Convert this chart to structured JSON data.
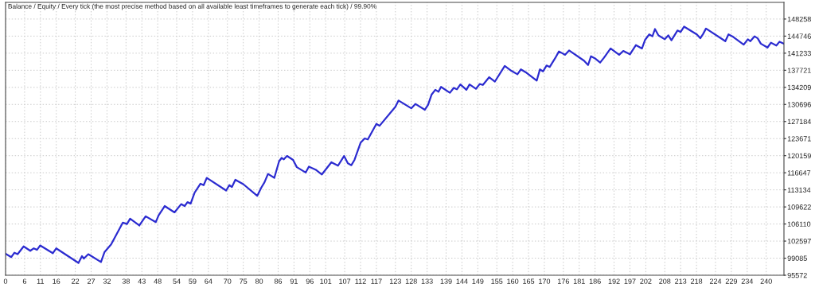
{
  "chart_data": {
    "type": "line",
    "title": "Balance / Equity / Every tick (the most precise method based on all available least timeframes to generate each tick) / 99.90%",
    "series": [
      {
        "color": "#2b2bd0",
        "x": [
          0,
          1.8,
          2.8,
          3.8,
          5.7,
          7.8,
          8.9,
          9.9,
          10.9,
          14.9,
          16,
          23,
          24.1,
          24.7,
          26.1,
          30.1,
          31.2,
          33.3,
          37,
          38.3,
          39.3,
          42.2,
          44.2,
          47.4,
          48.3,
          50.2,
          53.3,
          55.4,
          56.5,
          57.4,
          58.4,
          59.6,
          61.5,
          62.5,
          63.5,
          69.6,
          70.6,
          71.4,
          72.5,
          75,
          79.4,
          80.7,
          81.7,
          82.8,
          84.8,
          86.3,
          87.1,
          87.8,
          88.8,
          90.7,
          91.9,
          94.7,
          95.7,
          97.8,
          99.8,
          102.8,
          104.9,
          106.8,
          108,
          109.1,
          110.1,
          112,
          113.3,
          114.3,
          117,
          118,
          123,
          124,
          128,
          129.3,
          132.3,
          133.3,
          134.4,
          135.6,
          136.6,
          137.4,
          140.2,
          141.4,
          142.4,
          143.5,
          145.4,
          146.4,
          148.4,
          149.6,
          150.6,
          152.6,
          154.4,
          157.5,
          159.6,
          161.5,
          162.6,
          164.4,
          167.6,
          168.6,
          169.6,
          170.7,
          171.7,
          173.4,
          174.6,
          176.5,
          177.8,
          182.5,
          183.8,
          184.7,
          185.9,
          187.6,
          188.8,
          190.9,
          193.6,
          194.9,
          197,
          198.9,
          200.8,
          201.8,
          203.1,
          204.1,
          204.9,
          206,
          208,
          209.1,
          210.1,
          212,
          213,
          214.1,
          218.1,
          219.2,
          220.1,
          221,
          227.1,
          228.1,
          229.3,
          232.9,
          234.2,
          235,
          236.3,
          237.3,
          238.3,
          240.4,
          241.5,
          243.2,
          244.2,
          245.5
        ],
        "values": [
          100000,
          99300,
          100200,
          99900,
          101500,
          100600,
          101100,
          100800,
          101700,
          100100,
          101100,
          98100,
          99500,
          99000,
          99900,
          98300,
          100300,
          101900,
          106400,
          106100,
          107200,
          105800,
          107700,
          106500,
          107900,
          109800,
          108500,
          110200,
          109800,
          110600,
          110300,
          112500,
          114400,
          114100,
          115600,
          113000,
          114100,
          113700,
          115200,
          114300,
          111900,
          113600,
          114700,
          116400,
          115600,
          119000,
          119700,
          119400,
          120100,
          119300,
          117800,
          116700,
          117900,
          117300,
          116300,
          118800,
          118100,
          120100,
          118600,
          118200,
          119300,
          122800,
          123700,
          123500,
          126700,
          126300,
          130200,
          131500,
          129900,
          130800,
          129600,
          130600,
          132700,
          133700,
          133300,
          134300,
          133100,
          134100,
          133800,
          134800,
          133700,
          134800,
          133900,
          134900,
          134700,
          136300,
          135400,
          138600,
          137600,
          136900,
          137900,
          137200,
          135600,
          137900,
          137500,
          138700,
          138400,
          140200,
          141600,
          140900,
          141800,
          139700,
          138800,
          140600,
          140200,
          139300,
          140300,
          142200,
          140900,
          141700,
          141000,
          142900,
          142200,
          144000,
          145100,
          144700,
          146200,
          144900,
          144100,
          144900,
          143900,
          145900,
          145600,
          146700,
          145100,
          144300,
          145200,
          146300,
          143700,
          145100,
          144700,
          143000,
          144100,
          143700,
          144700,
          144300,
          143200,
          142400,
          143400,
          142800,
          143600,
          143200
        ]
      }
    ],
    "xlim": [
      0,
      245.6
    ],
    "ylim": [
      95572,
      151680
    ],
    "xticks": [
      0,
      6,
      11,
      16,
      22,
      27,
      32,
      38,
      43,
      48,
      54,
      59,
      64,
      70,
      75,
      80,
      86,
      91,
      96,
      101,
      107,
      112,
      117,
      123,
      128,
      133,
      139,
      144,
      149,
      155,
      160,
      165,
      170,
      176,
      181,
      186,
      192,
      197,
      202,
      208,
      213,
      218,
      224,
      229,
      234,
      240
    ],
    "yticks": [
      95572,
      99085,
      102597,
      106110,
      109622,
      113134,
      116647,
      120159,
      123671,
      127184,
      130696,
      134209,
      137721,
      141233,
      144746,
      148258
    ],
    "grid": true,
    "legend": false,
    "marker": "none",
    "line_style": "solid"
  }
}
